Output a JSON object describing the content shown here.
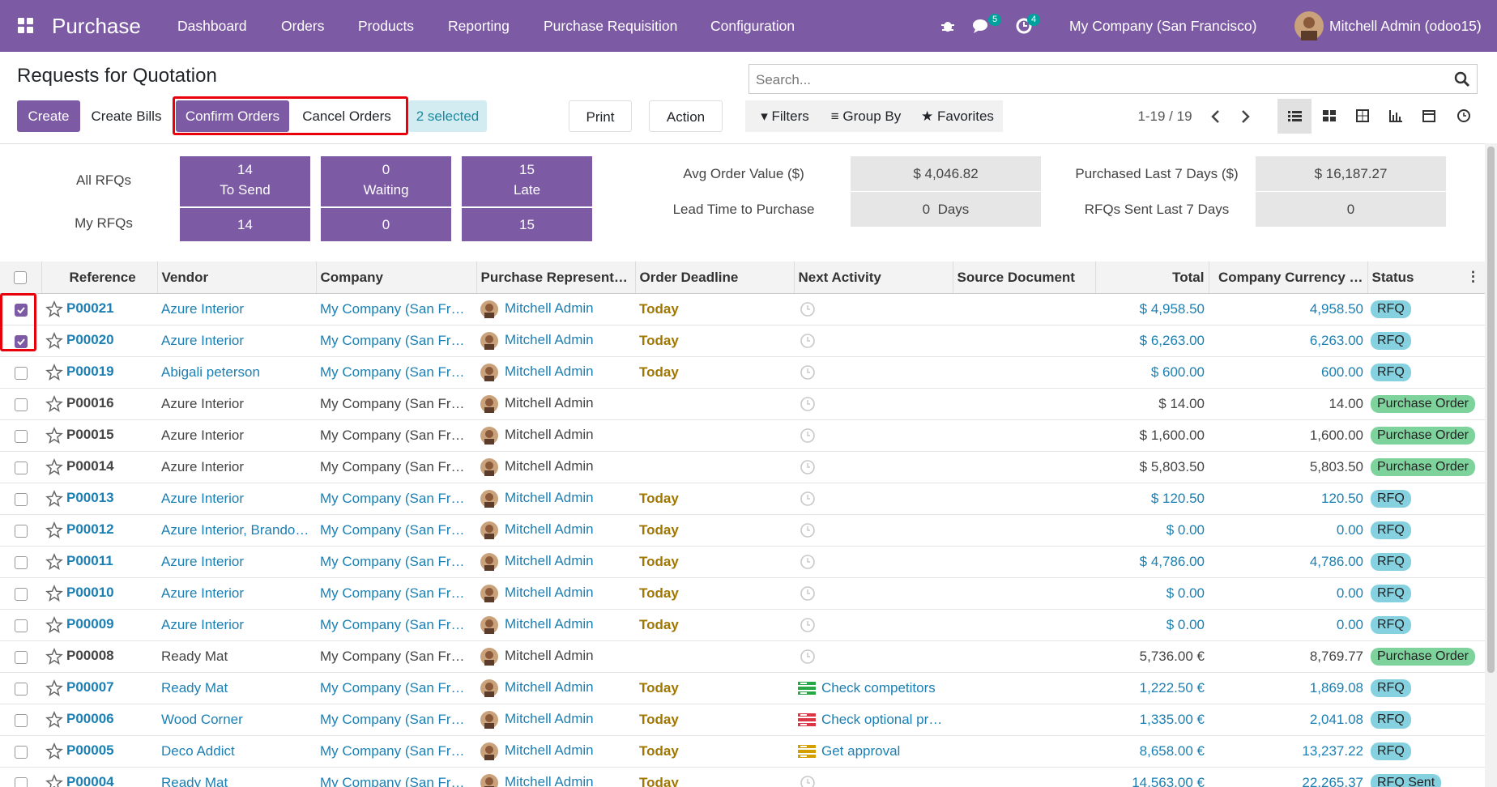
{
  "navbar": {
    "app": "Purchase",
    "menu": [
      "Dashboard",
      "Orders",
      "Products",
      "Reporting",
      "Purchase Requisition",
      "Configuration"
    ],
    "chat_count": "5",
    "activity_count": "4",
    "company": "My Company (San Francisco)",
    "user": "Mitchell Admin (odoo15)"
  },
  "control_panel": {
    "title": "Requests for Quotation",
    "search_placeholder": "Search...",
    "create": "Create",
    "create_bills": "Create Bills",
    "confirm": "Confirm Orders",
    "cancel": "Cancel Orders",
    "selected": "2 selected",
    "print": "Print",
    "action": "Action",
    "filters": "Filters",
    "group_by": "Group By",
    "favorites": "Favorites",
    "pager": "1-19 / 19"
  },
  "dashboard": {
    "row_labels": [
      "All RFQs",
      "My RFQs"
    ],
    "tiles": [
      {
        "count": "14",
        "label": "To Send",
        "mine": "14"
      },
      {
        "count": "0",
        "label": "Waiting",
        "mine": "0"
      },
      {
        "count": "15",
        "label": "Late",
        "mine": "15"
      }
    ],
    "stats": [
      {
        "label": "Avg Order Value ($)",
        "value": "$ 4,046.82"
      },
      {
        "label": "Lead Time to Purchase",
        "value": "0  Days"
      },
      {
        "label": "Purchased Last 7 Days ($)",
        "value": "$ 16,187.27"
      },
      {
        "label": "RFQs Sent Last 7 Days",
        "value": "0"
      }
    ]
  },
  "table": {
    "columns": [
      "Reference",
      "Vendor",
      "Company",
      "Purchase Represent…",
      "Order Deadline",
      "Next Activity",
      "Source Document",
      "Total",
      "Company Currency …",
      "Status"
    ],
    "rows": [
      {
        "selected": true,
        "reference": "P00021",
        "vendor": "Azure Interior",
        "company": "My Company (San Fr…",
        "rep": "Mitchell Admin",
        "deadline": "Today",
        "activity": null,
        "total": "$ 4,958.50",
        "company_currency": "4,958.50",
        "status": "RFQ"
      },
      {
        "selected": true,
        "reference": "P00020",
        "vendor": "Azure Interior",
        "company": "My Company (San Fr…",
        "rep": "Mitchell Admin",
        "deadline": "Today",
        "activity": null,
        "total": "$ 6,263.00",
        "company_currency": "6,263.00",
        "status": "RFQ"
      },
      {
        "selected": false,
        "reference": "P00019",
        "vendor": "Abigali peterson",
        "company": "My Company (San Fr…",
        "rep": "Mitchell Admin",
        "deadline": "Today",
        "activity": null,
        "total": "$ 600.00",
        "company_currency": "600.00",
        "status": "RFQ"
      },
      {
        "selected": false,
        "reference": "P00016",
        "vendor": "Azure Interior",
        "company": "My Company (San Fr…",
        "rep": "Mitchell Admin",
        "deadline": null,
        "activity": null,
        "total": "$ 14.00",
        "company_currency": "14.00",
        "status": "Purchase Order"
      },
      {
        "selected": false,
        "reference": "P00015",
        "vendor": "Azure Interior",
        "company": "My Company (San Fr…",
        "rep": "Mitchell Admin",
        "deadline": null,
        "activity": null,
        "total": "$ 1,600.00",
        "company_currency": "1,600.00",
        "status": "Purchase Order"
      },
      {
        "selected": false,
        "reference": "P00014",
        "vendor": "Azure Interior",
        "company": "My Company (San Fr…",
        "rep": "Mitchell Admin",
        "deadline": null,
        "activity": null,
        "total": "$ 5,803.50",
        "company_currency": "5,803.50",
        "status": "Purchase Order"
      },
      {
        "selected": false,
        "reference": "P00013",
        "vendor": "Azure Interior",
        "company": "My Company (San Fr…",
        "rep": "Mitchell Admin",
        "deadline": "Today",
        "activity": null,
        "total": "$ 120.50",
        "company_currency": "120.50",
        "status": "RFQ"
      },
      {
        "selected": false,
        "reference": "P00012",
        "vendor": "Azure Interior, Brando…",
        "company": "My Company (San Fr…",
        "rep": "Mitchell Admin",
        "deadline": "Today",
        "activity": null,
        "total": "$ 0.00",
        "company_currency": "0.00",
        "status": "RFQ"
      },
      {
        "selected": false,
        "reference": "P00011",
        "vendor": "Azure Interior",
        "company": "My Company (San Fr…",
        "rep": "Mitchell Admin",
        "deadline": "Today",
        "activity": null,
        "total": "$ 4,786.00",
        "company_currency": "4,786.00",
        "status": "RFQ"
      },
      {
        "selected": false,
        "reference": "P00010",
        "vendor": "Azure Interior",
        "company": "My Company (San Fr…",
        "rep": "Mitchell Admin",
        "deadline": "Today",
        "activity": null,
        "total": "$ 0.00",
        "company_currency": "0.00",
        "status": "RFQ"
      },
      {
        "selected": false,
        "reference": "P00009",
        "vendor": "Azure Interior",
        "company": "My Company (San Fr…",
        "rep": "Mitchell Admin",
        "deadline": "Today",
        "activity": null,
        "total": "$ 0.00",
        "company_currency": "0.00",
        "status": "RFQ"
      },
      {
        "selected": false,
        "reference": "P00008",
        "vendor": "Ready Mat",
        "company": "My Company (San Fr…",
        "rep": "Mitchell Admin",
        "deadline": null,
        "activity": null,
        "total": "5,736.00 €",
        "company_currency": "8,769.77",
        "status": "Purchase Order"
      },
      {
        "selected": false,
        "reference": "P00007",
        "vendor": "Ready Mat",
        "company": "My Company (San Fr…",
        "rep": "Mitchell Admin",
        "deadline": "Today",
        "activity": {
          "text": "Check competitors",
          "color": "#28a745"
        },
        "total": "1,222.50 €",
        "company_currency": "1,869.08",
        "status": "RFQ"
      },
      {
        "selected": false,
        "reference": "P00006",
        "vendor": "Wood Corner",
        "company": "My Company (San Fr…",
        "rep": "Mitchell Admin",
        "deadline": "Today",
        "activity": {
          "text": "Check optional pr…",
          "color": "#dc3545"
        },
        "total": "1,335.00 €",
        "company_currency": "2,041.08",
        "status": "RFQ"
      },
      {
        "selected": false,
        "reference": "P00005",
        "vendor": "Deco Addict",
        "company": "My Company (San Fr…",
        "rep": "Mitchell Admin",
        "deadline": "Today",
        "activity": {
          "text": "Get approval",
          "color": "#d39e00"
        },
        "total": "8,658.00 €",
        "company_currency": "13,237.22",
        "status": "RFQ"
      },
      {
        "selected": false,
        "reference": "P00004",
        "vendor": "Ready Mat",
        "company": "My Company (San Fr…",
        "rep": "Mitchell Admin",
        "deadline": "Today",
        "activity": null,
        "total": "14,563.00 €",
        "company_currency": "22,265.37",
        "status": "RFQ Sent"
      }
    ]
  }
}
